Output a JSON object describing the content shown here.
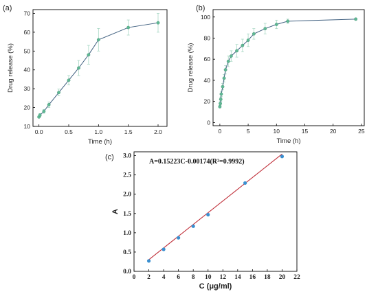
{
  "colors": {
    "line_ab": "#3f5f7f",
    "marker_ab": "#5fb894",
    "errorbar_ab": "#a8d7c4",
    "line_c": "#c0303a",
    "marker_c": "#3a8fd0"
  },
  "chart_data": [
    {
      "type": "line",
      "panel": "(a)",
      "xlabel": "Time (h)",
      "ylabel": "Drug release (%)",
      "xlim": [
        -0.1,
        2.15
      ],
      "ylim": [
        10,
        72
      ],
      "xticks": [
        0.0,
        0.5,
        1.0,
        1.5,
        2.0
      ],
      "xtick_labels": [
        "0.0",
        "0.5",
        "1.0",
        "1.5",
        "2.0"
      ],
      "yticks": [
        10,
        20,
        30,
        40,
        50,
        60,
        70
      ],
      "ytick_labels": [
        "10",
        "20",
        "30",
        "40",
        "50",
        "60",
        "70"
      ],
      "series": [
        {
          "x": [
            0.0,
            0.017,
            0.083,
            0.167,
            0.333,
            0.5,
            0.667,
            0.833,
            1.0,
            1.5,
            2.0
          ],
          "y": [
            15.0,
            16.0,
            18.0,
            21.5,
            28.0,
            34.5,
            41.0,
            48.0,
            56.0,
            62.5,
            65.0
          ],
          "err": [
            0.5,
            0.8,
            1.0,
            1.5,
            1.8,
            2.5,
            4.0,
            5.0,
            6.0,
            4.0,
            5.0
          ]
        }
      ]
    },
    {
      "type": "line",
      "panel": "(b)",
      "xlabel": "Time (h)",
      "ylabel": "Drug release (%)",
      "xlim": [
        -1.2,
        25.5
      ],
      "ylim": [
        -3,
        107
      ],
      "xticks": [
        0,
        5,
        10,
        15,
        20,
        25
      ],
      "xtick_labels": [
        "0",
        "5",
        "10",
        "15",
        "20",
        "25"
      ],
      "yticks": [
        0,
        20,
        40,
        60,
        80,
        100
      ],
      "ytick_labels": [
        "0",
        "20",
        "40",
        "60",
        "80",
        "100"
      ],
      "series": [
        {
          "x": [
            0.0,
            0.083,
            0.167,
            0.25,
            0.5,
            0.75,
            1.0,
            1.5,
            2.0,
            3.0,
            4.0,
            5.0,
            6.0,
            8.0,
            10.0,
            12.0,
            24.0
          ],
          "y": [
            15.0,
            18.0,
            22.0,
            27.0,
            34.0,
            42.0,
            50.0,
            58.0,
            63.0,
            68.0,
            73.0,
            78.0,
            84.0,
            89.0,
            93.0,
            96.0,
            98.0
          ],
          "err": [
            1.0,
            1.5,
            2.0,
            2.5,
            3.0,
            3.5,
            4.0,
            5.0,
            5.0,
            6.0,
            6.0,
            6.0,
            5.0,
            5.0,
            4.0,
            2.0,
            1.0
          ]
        }
      ]
    },
    {
      "type": "scatter",
      "panel": "(c)",
      "xlabel": "C (μg/ml)",
      "ylabel": "A",
      "annotation": "A=0.15223C-0.00174(R²=0.9992)",
      "xlim": [
        0,
        22
      ],
      "ylim": [
        0,
        3.1
      ],
      "xticks": [
        0,
        2,
        4,
        6,
        8,
        10,
        12,
        14,
        16,
        18,
        20,
        22
      ],
      "xtick_labels": [
        "0",
        "2",
        "4",
        "6",
        "8",
        "10",
        "12",
        "14",
        "16",
        "18",
        "20",
        "22"
      ],
      "yticks": [
        0,
        0.5,
        1.0,
        1.5,
        2.0,
        2.5,
        3.0
      ],
      "ytick_labels": [
        "0.0",
        "0.5",
        "1.0",
        "1.5",
        "2.0",
        "2.5",
        "3.0"
      ],
      "series": [
        {
          "x": [
            2,
            4,
            6,
            8,
            10,
            15,
            20
          ],
          "y": [
            0.27,
            0.57,
            0.87,
            1.17,
            1.47,
            2.29,
            2.98
          ]
        }
      ],
      "fit": {
        "slope": 0.15223,
        "intercept": -0.00174,
        "x_range": [
          2,
          20
        ]
      }
    }
  ]
}
